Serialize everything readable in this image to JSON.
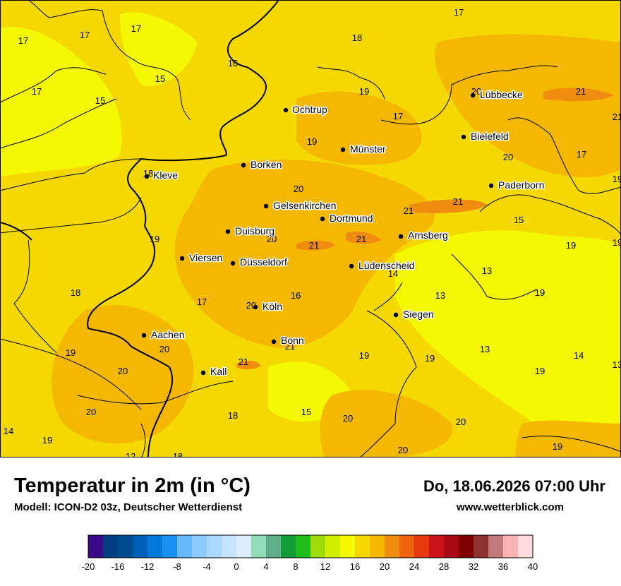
{
  "title": "Temperatur in 2m (in °C)",
  "model": "Modell: ICON-D2 03z, Deutscher Wetterdienst",
  "datetime": "Do, 18.06.2026 07:00 Uhr",
  "website": "www.wetterblick.com",
  "cities": [
    {
      "name": "Lübbecke"
    },
    {
      "name": "Bielefeld"
    },
    {
      "name": "Ochtrup"
    },
    {
      "name": "Münster"
    },
    {
      "name": "Paderborn"
    },
    {
      "name": "Borken"
    },
    {
      "name": "Kleve"
    },
    {
      "name": "Gelsenkirchen"
    },
    {
      "name": "Dortmund"
    },
    {
      "name": "Duisburg"
    },
    {
      "name": "Arnsberg"
    },
    {
      "name": "Viersen"
    },
    {
      "name": "Düsseldorf"
    },
    {
      "name": "Lüdenscheid"
    },
    {
      "name": "Köln"
    },
    {
      "name": "Siegen"
    },
    {
      "name": "Aachen"
    },
    {
      "name": "Bonn"
    },
    {
      "name": "Kall"
    }
  ],
  "temp_labels": [
    "17",
    "17",
    "17",
    "17",
    "18",
    "16",
    "15",
    "17",
    "15",
    "19",
    "20",
    "21",
    "17",
    "19",
    "20",
    "17",
    "19",
    "18",
    "20",
    "19",
    "21",
    "21",
    "15",
    "20",
    "21",
    "21",
    "19",
    "14",
    "19",
    "13",
    "18",
    "17",
    "16",
    "13",
    "19",
    "20",
    "21",
    "19",
    "13",
    "19",
    "20",
    "19",
    "14",
    "20",
    "21",
    "19",
    "13",
    "20",
    "18",
    "15",
    "20",
    "14",
    "19",
    "20",
    "12",
    "18",
    "20",
    "19",
    "21"
  ],
  "legend": {
    "ticks": [
      "-20",
      "-16",
      "-12",
      "-8",
      "-4",
      "0",
      "4",
      "8",
      "12",
      "16",
      "20",
      "24",
      "28",
      "32",
      "36",
      "40"
    ],
    "colors": [
      "#3b0a8a",
      "#003f7f",
      "#004a8f",
      "#0060b8",
      "#007ad8",
      "#1a90f0",
      "#66b8ff",
      "#8ccaff",
      "#aad8ff",
      "#c4e4ff",
      "#daeeff",
      "#92dcb8",
      "#5fb08a",
      "#139d3a",
      "#20bc1a",
      "#a0dc0a",
      "#d4ee00",
      "#f4f800",
      "#f4d800",
      "#f4b800",
      "#f08c10",
      "#f06410",
      "#e83810",
      "#c8141a",
      "#a80a14",
      "#800000",
      "#8c3232",
      "#c07878",
      "#fab4b4",
      "#ffdcdc"
    ]
  }
}
